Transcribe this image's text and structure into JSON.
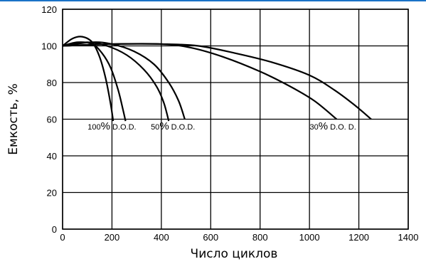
{
  "chart_data": {
    "type": "line",
    "xlabel": "Число циклов",
    "ylabel": "Емкость, %",
    "xlim": [
      0,
      1400
    ],
    "ylim": [
      0,
      120
    ],
    "x_ticks": [
      "0",
      "200",
      "400",
      "600",
      "800",
      "1000",
      "1200",
      "1400"
    ],
    "y_ticks": [
      "0",
      "20",
      "40",
      "60",
      "80",
      "100",
      "120"
    ],
    "grid": true,
    "series": [
      {
        "group": "100",
        "points": [
          [
            0,
            100
          ],
          [
            40,
            104
          ],
          [
            80,
            105
          ],
          [
            120,
            102
          ],
          [
            150,
            94
          ],
          [
            175,
            82
          ],
          [
            195,
            68
          ],
          [
            205,
            59
          ]
        ]
      },
      {
        "group": "100",
        "points": [
          [
            0,
            100
          ],
          [
            60,
            102
          ],
          [
            120,
            101
          ],
          [
            160,
            96
          ],
          [
            195,
            88
          ],
          [
            225,
            76
          ],
          [
            245,
            65
          ],
          [
            255,
            59
          ]
        ]
      },
      {
        "group": "50",
        "points": [
          [
            0,
            100
          ],
          [
            100,
            102
          ],
          [
            180,
            100
          ],
          [
            260,
            95
          ],
          [
            330,
            87
          ],
          [
            380,
            78
          ],
          [
            410,
            69
          ],
          [
            430,
            59
          ]
        ]
      },
      {
        "group": "50",
        "points": [
          [
            0,
            100
          ],
          [
            120,
            102
          ],
          [
            200,
            101
          ],
          [
            290,
            97
          ],
          [
            370,
            90
          ],
          [
            430,
            80
          ],
          [
            470,
            70
          ],
          [
            495,
            60
          ]
        ]
      },
      {
        "group": "30",
        "points": [
          [
            0,
            100
          ],
          [
            200,
            101
          ],
          [
            400,
            101
          ],
          [
            520,
            99
          ],
          [
            650,
            94
          ],
          [
            800,
            86
          ],
          [
            920,
            78
          ],
          [
            1020,
            70
          ],
          [
            1110,
            60
          ]
        ]
      },
      {
        "group": "30",
        "points": [
          [
            0,
            100
          ],
          [
            200,
            101
          ],
          [
            400,
            101
          ],
          [
            550,
            100
          ],
          [
            700,
            96
          ],
          [
            850,
            91
          ],
          [
            1000,
            84
          ],
          [
            1100,
            76
          ],
          [
            1180,
            68
          ],
          [
            1250,
            60
          ]
        ]
      }
    ],
    "annotations": [
      {
        "key": "dod100",
        "num": "100",
        "pct": "%",
        "dod": "D.O.D.",
        "x": 200,
        "y": 56
      },
      {
        "key": "dod50",
        "num": "50",
        "pct": "%",
        "dod": "D.O.D.",
        "x": 447,
        "y": 56
      },
      {
        "key": "dod30",
        "num": "30",
        "pct": "%",
        "dod": "D.O. D.",
        "x": 1095,
        "y": 56
      }
    ]
  }
}
